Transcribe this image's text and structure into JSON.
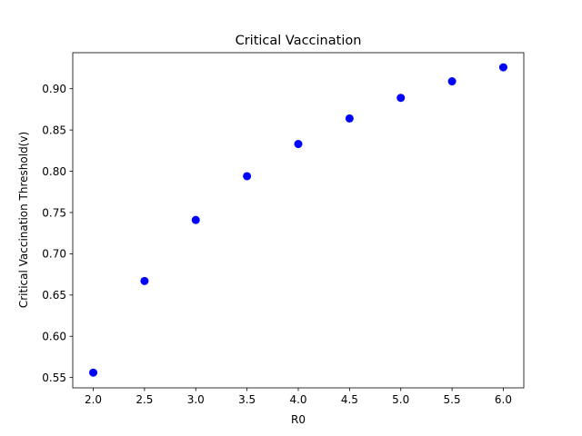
{
  "chart_data": {
    "type": "scatter",
    "title": "Critical Vaccination",
    "xlabel": "R0",
    "ylabel": "Critical Vaccination Threshold(v)",
    "x": [
      2.0,
      2.5,
      3.0,
      3.5,
      4.0,
      4.5,
      5.0,
      5.5,
      6.0
    ],
    "y": [
      0.556,
      0.667,
      0.741,
      0.794,
      0.833,
      0.864,
      0.889,
      0.909,
      0.926
    ],
    "xlim": [
      1.8,
      6.2
    ],
    "ylim": [
      0.5375,
      0.9437
    ],
    "xticks": [
      2.0,
      2.5,
      3.0,
      3.5,
      4.0,
      4.5,
      5.0,
      5.5,
      6.0
    ],
    "xtick_labels": [
      "2.0",
      "2.5",
      "3.0",
      "3.5",
      "4.0",
      "4.5",
      "5.0",
      "5.5",
      "6.0"
    ],
    "yticks": [
      0.55,
      0.6,
      0.65,
      0.7,
      0.75,
      0.8,
      0.85,
      0.9
    ],
    "ytick_labels": [
      "0.55",
      "0.60",
      "0.65",
      "0.70",
      "0.75",
      "0.80",
      "0.85",
      "0.90"
    ],
    "marker_color": "#0000ff",
    "grid": false
  }
}
